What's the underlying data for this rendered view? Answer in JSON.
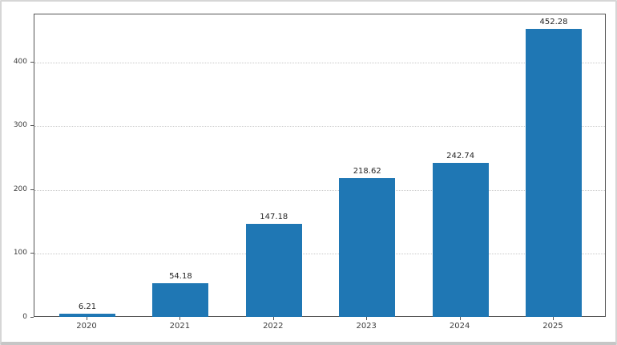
{
  "chart_data": {
    "type": "bar",
    "title": "",
    "xlabel": "",
    "ylabel": "",
    "categories": [
      "2020",
      "2021",
      "2022",
      "2023",
      "2024",
      "2025"
    ],
    "values": [
      6.21,
      54.18,
      147.18,
      218.62,
      242.74,
      452.28
    ],
    "value_labels": [
      "6.21",
      "54.18",
      "147.18",
      "218.62",
      "242.74",
      "452.28"
    ],
    "yticks": [
      0,
      100,
      200,
      300,
      400
    ],
    "ytick_labels": [
      "0",
      "100",
      "200",
      "300",
      "400"
    ],
    "ylim": [
      0,
      475
    ],
    "grid": "dotted-horizontal",
    "legend": "none",
    "bar_color": "#1f77b4",
    "grid_color": "#c9c9c9",
    "spine_color": "#555555",
    "text_color": "#262626",
    "background_color": "#ffffff"
  }
}
